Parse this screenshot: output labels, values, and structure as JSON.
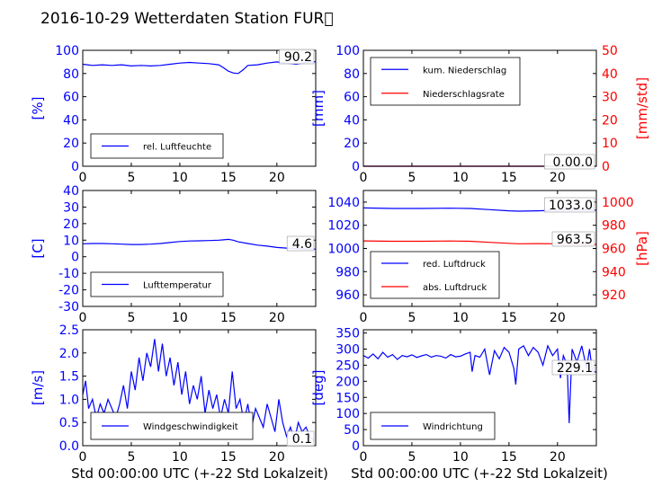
{
  "title": "2016-10-29 Wetterdaten Station FUR\u0000",
  "xlabel": "Std 00:00:00 UTC (+-22 Std Lokalzeit)",
  "chart_data": [
    {
      "id": "hum",
      "type": "line",
      "xlim": [
        0,
        24
      ],
      "xticks": [
        0,
        5,
        10,
        15,
        20
      ],
      "ylim": [
        0,
        100
      ],
      "yticks": [
        0,
        20,
        40,
        60,
        80,
        100
      ],
      "ylabel": "[%]",
      "legend": "bottom-left",
      "annotation": "90.2",
      "series": [
        {
          "name": "rel. Luftfeuchte",
          "color": "#0000ff",
          "x": [
            0,
            0.5,
            1,
            2,
            3,
            4,
            5,
            6,
            7,
            8,
            9,
            10,
            11,
            12,
            13,
            14,
            14.5,
            15,
            15.5,
            16,
            16.5,
            17,
            18,
            19,
            20,
            21,
            22,
            23,
            24
          ],
          "y": [
            88,
            87.5,
            87,
            87.5,
            87,
            87.5,
            86.5,
            87,
            86.5,
            87,
            88,
            89,
            89.5,
            89,
            88.5,
            87.5,
            85,
            82,
            80.5,
            80,
            83,
            87,
            87.5,
            89,
            90,
            89,
            88,
            89.5,
            90.2
          ]
        }
      ]
    },
    {
      "id": "rain",
      "type": "line",
      "xlim": [
        0,
        24
      ],
      "xticks": [
        0,
        5,
        10,
        15,
        20
      ],
      "ylim": [
        0,
        100
      ],
      "yticks": [
        0,
        20,
        40,
        60,
        80,
        100
      ],
      "ylabel": "[mm]",
      "y2lim": [
        0,
        50
      ],
      "y2ticks": [
        0,
        10,
        20,
        30,
        40,
        50
      ],
      "y2label": "[mm/std]",
      "legend": "top-left",
      "annotation": "0.00.0",
      "series": [
        {
          "name": "kum. Niederschlag",
          "color": "#0000ff",
          "axis": "left",
          "x": [
            0,
            24
          ],
          "y": [
            0,
            0
          ]
        },
        {
          "name": "Niederschlagsrate",
          "color": "#ff0000",
          "axis": "right",
          "x": [
            0,
            24
          ],
          "y": [
            0,
            0
          ]
        }
      ]
    },
    {
      "id": "temp",
      "type": "line",
      "xlim": [
        0,
        24
      ],
      "xticks": [
        0,
        5,
        10,
        15,
        20
      ],
      "ylim": [
        -30,
        40
      ],
      "yticks": [
        -30,
        -20,
        -10,
        0,
        10,
        20,
        30,
        40
      ],
      "ylabel": "[C]",
      "legend": "bottom-left",
      "annotation": "4.6",
      "series": [
        {
          "name": "Lufttemperatur",
          "color": "#0000ff",
          "x": [
            0,
            1,
            2,
            3,
            4,
            5,
            6,
            7,
            8,
            9,
            10,
            11,
            12,
            13,
            14,
            14.5,
            15,
            15.5,
            16,
            17,
            18,
            19,
            20,
            21,
            22,
            23,
            24
          ],
          "y": [
            7.8,
            8,
            8,
            7.8,
            7.6,
            7.4,
            7.4,
            7.6,
            8,
            8.6,
            9.2,
            9.5,
            9.6,
            9.8,
            10,
            10.2,
            10.5,
            10,
            9,
            8,
            7,
            6.4,
            5.6,
            5.2,
            5,
            4.7,
            4.6
          ]
        }
      ]
    },
    {
      "id": "press",
      "type": "line",
      "xlim": [
        0,
        24
      ],
      "xticks": [
        0,
        5,
        10,
        15,
        20
      ],
      "ylim": [
        950,
        1050
      ],
      "yticks": [
        960,
        980,
        1000,
        1020,
        1040
      ],
      "ylabel": "",
      "y2lim": [
        910,
        1010
      ],
      "y2ticks": [
        920,
        940,
        960,
        980,
        1000
      ],
      "y2label": "[hPa]",
      "legend": "bottom-left",
      "annotations": [
        "1033.0",
        "963.5"
      ],
      "series": [
        {
          "name": "red. Luftdruck",
          "color": "#0000ff",
          "axis": "left",
          "x": [
            0,
            3,
            6,
            9,
            11,
            13,
            15,
            16,
            18,
            20,
            22,
            24
          ],
          "y": [
            1035,
            1034.5,
            1034.5,
            1034.7,
            1034.5,
            1033.5,
            1032.5,
            1032.2,
            1032.5,
            1033,
            1033,
            1033
          ]
        },
        {
          "name": "abs. Luftdruck",
          "color": "#ff0000",
          "axis": "right",
          "x": [
            0,
            3,
            6,
            9,
            11,
            13,
            15,
            16,
            18,
            20,
            22,
            24
          ],
          "y": [
            966.5,
            966.2,
            966.2,
            966.4,
            966.2,
            965.3,
            964.4,
            964,
            964.2,
            964,
            963.6,
            963.5
          ]
        }
      ]
    },
    {
      "id": "wind",
      "type": "line",
      "xlim": [
        0,
        24
      ],
      "xticks": [
        0,
        5,
        10,
        15,
        20
      ],
      "ylim": [
        0,
        2.5
      ],
      "yticks": [
        0.0,
        0.5,
        1.0,
        1.5,
        2.0,
        2.5
      ],
      "ylabel": "[m/s]",
      "legend": "bottom-left",
      "annotation": "0.1",
      "series": [
        {
          "name": "Windgeschwindigkeit",
          "color": "#0000ff",
          "x": [
            0,
            0.3,
            0.6,
            1,
            1.4,
            1.8,
            2.2,
            2.6,
            3,
            3.4,
            3.8,
            4.2,
            4.6,
            5,
            5.4,
            5.8,
            6.2,
            6.6,
            7,
            7.4,
            7.8,
            8.2,
            8.6,
            9,
            9.4,
            9.8,
            10.2,
            10.6,
            11,
            11.4,
            11.8,
            12.2,
            12.6,
            13,
            13.4,
            13.8,
            14.2,
            14.6,
            15,
            15.4,
            15.8,
            16.2,
            16.6,
            17,
            17.4,
            17.8,
            18.2,
            18.6,
            19,
            19.4,
            19.8,
            20.2,
            20.6,
            21,
            21.4,
            21.8,
            22.2,
            22.6,
            23,
            23.4,
            23.8
          ],
          "y": [
            1.1,
            1.4,
            0.8,
            1.0,
            0.6,
            0.9,
            0.7,
            1.0,
            0.8,
            0.6,
            0.9,
            1.3,
            0.8,
            1.6,
            1.2,
            1.9,
            1.4,
            2.0,
            1.7,
            2.3,
            1.6,
            2.2,
            1.5,
            1.9,
            1.3,
            1.8,
            1.1,
            1.6,
            0.9,
            1.3,
            1.0,
            1.5,
            0.7,
            1.2,
            0.8,
            1.1,
            0.6,
            1.0,
            0.7,
            1.6,
            0.8,
            1.0,
            0.5,
            0.9,
            0.4,
            0.8,
            0.6,
            0.4,
            0.9,
            0.6,
            0.3,
            1.0,
            0.5,
            0.2,
            0.4,
            0.1,
            0.5,
            0.3,
            0.4,
            0.2,
            0.1
          ]
        }
      ]
    },
    {
      "id": "dir",
      "type": "line",
      "xlim": [
        0,
        24
      ],
      "xticks": [
        0,
        5,
        10,
        15,
        20
      ],
      "ylim": [
        0,
        360
      ],
      "yticks": [
        0,
        50,
        100,
        150,
        200,
        250,
        300,
        350
      ],
      "ylabel": "[deg]",
      "legend": "bottom-left",
      "annotation": "229.1",
      "series": [
        {
          "name": "Windrichtung",
          "color": "#0000ff",
          "x": [
            0,
            0.5,
            1,
            1.5,
            2,
            2.5,
            3,
            3.5,
            4,
            4.5,
            5,
            5.5,
            6,
            6.5,
            7,
            7.5,
            8,
            8.5,
            9,
            9.5,
            10,
            10.5,
            11,
            11.2,
            11.5,
            12,
            12.5,
            13,
            13.5,
            14,
            14.5,
            15,
            15.5,
            15.7,
            16,
            16.5,
            17,
            17.5,
            18,
            18.5,
            19,
            19.5,
            20,
            20.3,
            20.6,
            21,
            21.2,
            21.5,
            22,
            22.5,
            23,
            23.3,
            23.6,
            24
          ],
          "y": [
            280,
            272,
            285,
            270,
            290,
            275,
            283,
            268,
            280,
            276,
            282,
            274,
            279,
            283,
            275,
            280,
            278,
            272,
            283,
            276,
            278,
            285,
            290,
            230,
            280,
            275,
            300,
            220,
            295,
            270,
            305,
            290,
            240,
            190,
            300,
            310,
            280,
            305,
            290,
            250,
            310,
            280,
            300,
            210,
            280,
            250,
            70,
            300,
            260,
            310,
            240,
            300,
            230,
            229
          ]
        }
      ]
    }
  ]
}
